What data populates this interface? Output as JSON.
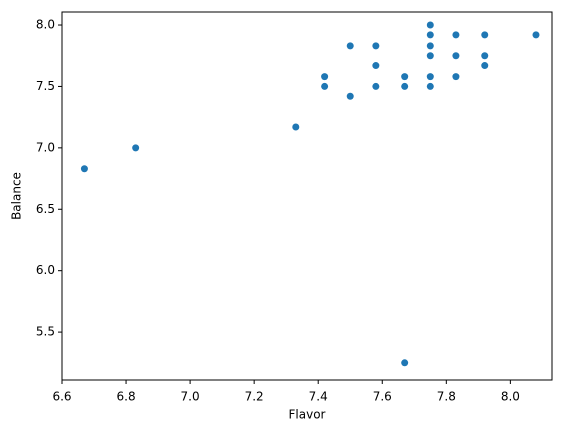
{
  "chart_data": {
    "type": "scatter",
    "xlabel": "Flavor",
    "ylabel": "Balance",
    "color": "#1f77b4",
    "x": [
      6.67,
      6.83,
      7.33,
      7.42,
      7.42,
      7.5,
      7.5,
      7.58,
      7.58,
      7.58,
      7.67,
      7.67,
      7.67,
      7.75,
      7.75,
      7.75,
      7.75,
      7.75,
      7.75,
      7.83,
      7.83,
      7.83,
      7.92,
      7.92,
      7.92,
      8.08
    ],
    "values": [
      6.83,
      7.0,
      7.17,
      7.58,
      7.5,
      7.83,
      7.42,
      7.83,
      7.67,
      7.5,
      7.58,
      7.5,
      5.25,
      8.0,
      7.92,
      7.83,
      7.75,
      7.58,
      7.5,
      7.92,
      7.75,
      7.58,
      7.92,
      7.75,
      7.67,
      7.92
    ],
    "xlim": [
      6.6,
      8.13
    ],
    "ylim": [
      5.11,
      8.106
    ],
    "xticks": [
      6.6,
      6.8,
      {
        "value": 7,
        "label": "7.0"
      },
      7.2,
      7.4,
      7.6,
      7.8,
      {
        "value": 8,
        "label": "8.0"
      }
    ],
    "yticks": [
      5.5,
      {
        "value": 6,
        "label": "6.0"
      },
      6.5,
      {
        "value": 7,
        "label": "7.0"
      },
      7.5,
      {
        "value": 8,
        "label": "8.0"
      }
    ]
  }
}
